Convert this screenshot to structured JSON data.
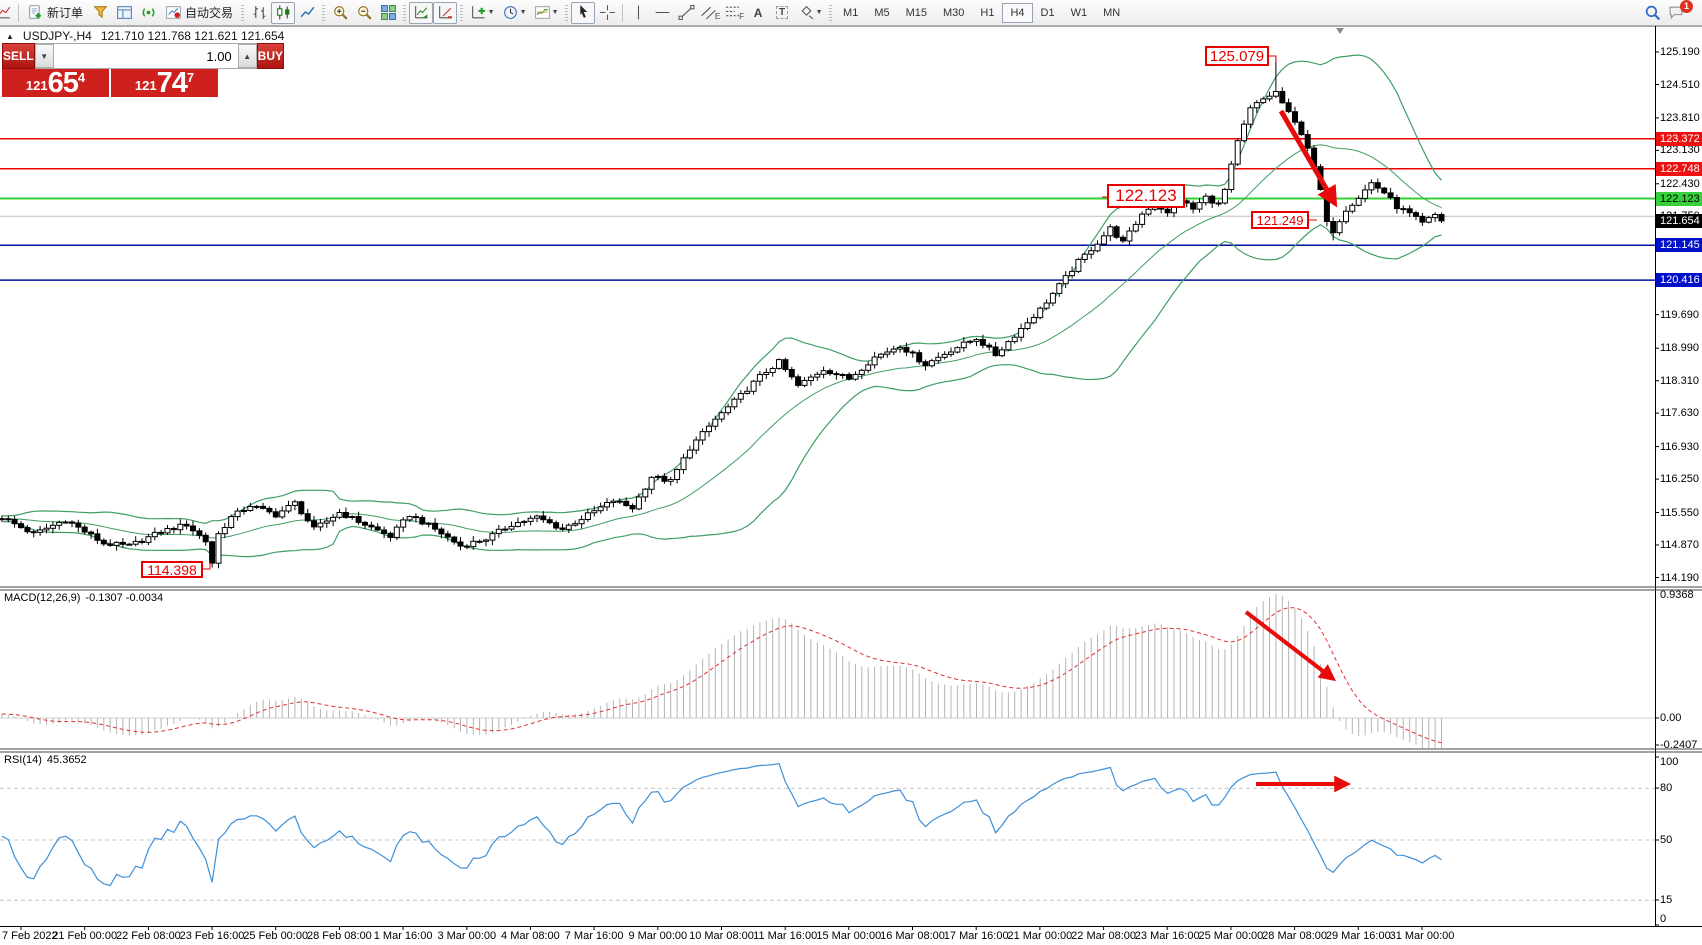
{
  "toolbar": {
    "new_order_label": "新订单",
    "auto_trading_label": "自动交易",
    "timeframes": [
      "M1",
      "M5",
      "M15",
      "M30",
      "H1",
      "H4",
      "D1",
      "W1",
      "MN"
    ],
    "active_timeframe": "H4",
    "notification_count": "1"
  },
  "icons": {
    "volume_down": "▼",
    "volume_up": "▲",
    "title_marker": "▲",
    "dropdown_caret": "▼",
    "text_tool": "A",
    "text_label_tool": "T",
    "channel_subscript": "E",
    "fibonacci_subscript": "F"
  },
  "chart": {
    "title_symbol": "USDJPY-,H4",
    "title_ohlc": "121.710 121.768 121.621 121.654"
  },
  "trade_panel": {
    "sell_label": "SELL",
    "buy_label": "BUY",
    "volume": "1.00",
    "sell_small": "121",
    "sell_big": "65",
    "sell_sup": "4",
    "buy_small": "121",
    "buy_big": "74",
    "buy_sup": "7"
  },
  "annotations": {
    "peak": "125.079",
    "level_mid": "122.123",
    "low_recent": "121.249",
    "low_feb": "114.398"
  },
  "macd_panel": {
    "label": "MACD(12,26,9)",
    "values": "-0.1307 -0.0034",
    "axis_top": "0.9368",
    "axis_zero": "0.00",
    "axis_bottom": "-0.2407"
  },
  "rsi_panel": {
    "label": "RSI(14)",
    "value": "45.3652",
    "axis": [
      "100",
      "80",
      "50",
      "15",
      "0"
    ]
  },
  "chart_data": {
    "type": "candlestick",
    "symbol": "USDJPY-",
    "timeframe": "H4",
    "ohlc_last": {
      "open": 121.71,
      "high": 121.768,
      "low": 121.621,
      "close": 121.654
    },
    "y_ticks": [
      "125.190",
      "124.510",
      "123.810",
      "123.130",
      "122.430",
      "121.750",
      "121.070",
      "120.390",
      "119.690",
      "118.990",
      "118.310",
      "117.630",
      "116.930",
      "116.250",
      "115.550",
      "114.870",
      "114.190"
    ],
    "x_labels": [
      "7 Feb 2022",
      "21 Feb 00:00",
      "22 Feb 08:00",
      "23 Feb 16:00",
      "25 Feb 00:00",
      "28 Feb 08:00",
      "1 Mar 16:00",
      "3 Mar 00:00",
      "4 Mar 08:00",
      "7 Mar 16:00",
      "9 Mar 00:00",
      "10 Mar 08:00",
      "11 Mar 16:00",
      "15 Mar 00:00",
      "16 Mar 08:00",
      "17 Mar 16:00",
      "21 Mar 00:00",
      "22 Mar 08:00",
      "23 Mar 16:00",
      "25 Mar 00:00",
      "28 Mar 08:00",
      "29 Mar 16:00",
      "31 Mar 00:00"
    ],
    "levels": [
      {
        "price": 123.372,
        "color": "#f00000",
        "label_bg": "#ee1111",
        "label_fg": "#ffffff"
      },
      {
        "price": 122.748,
        "color": "#f00000",
        "label_bg": "#ee1111",
        "label_fg": "#ffffff"
      },
      {
        "price": 122.123,
        "color": "#33d133",
        "label_bg": "#35d03a",
        "label_fg": "#000000"
      },
      {
        "price": 121.145,
        "color": "#000f9e",
        "label_bg": "#000fc8",
        "label_fg": "#ffffff"
      },
      {
        "price": 120.416,
        "color": "#000f9e",
        "label_bg": "#000fc8",
        "label_fg": "#ffffff"
      }
    ],
    "current_price": {
      "value": 121.654,
      "label_bg": "#000000",
      "label_fg": "#ffffff"
    },
    "bid_line_price": 121.75,
    "price_keypoints": [
      [
        -34,
        115.3
      ],
      [
        0,
        115.45
      ],
      [
        5,
        115.1
      ],
      [
        10,
        115.4
      ],
      [
        16,
        114.9
      ],
      [
        20,
        114.85
      ],
      [
        25,
        115.15
      ],
      [
        29,
        115.3
      ],
      [
        32,
        114.95
      ],
      [
        33,
        114.5
      ],
      [
        34,
        115.1
      ],
      [
        36,
        115.45
      ],
      [
        39,
        115.7
      ],
      [
        43,
        115.5
      ],
      [
        46,
        115.75
      ],
      [
        49,
        115.2
      ],
      [
        53,
        115.55
      ],
      [
        57,
        115.3
      ],
      [
        61,
        115.05
      ],
      [
        64,
        115.5
      ],
      [
        68,
        115.2
      ],
      [
        72,
        114.85
      ],
      [
        76,
        115.0
      ],
      [
        80,
        115.3
      ],
      [
        84,
        115.45
      ],
      [
        88,
        115.2
      ],
      [
        92,
        115.5
      ],
      [
        96,
        115.8
      ],
      [
        99,
        115.65
      ],
      [
        102,
        116.3
      ],
      [
        105,
        116.2
      ],
      [
        108,
        116.9
      ],
      [
        112,
        117.5
      ],
      [
        116,
        118.0
      ],
      [
        119,
        118.4
      ],
      [
        122,
        118.7
      ],
      [
        125,
        118.2
      ],
      [
        129,
        118.55
      ],
      [
        133,
        118.35
      ],
      [
        137,
        118.8
      ],
      [
        141,
        119.05
      ],
      [
        145,
        118.65
      ],
      [
        149,
        118.95
      ],
      [
        153,
        119.2
      ],
      [
        156,
        118.85
      ],
      [
        160,
        119.4
      ],
      [
        163,
        119.8
      ],
      [
        166,
        120.3
      ],
      [
        169,
        120.8
      ],
      [
        172,
        121.2
      ],
      [
        174,
        121.5
      ],
      [
        176,
        121.2
      ],
      [
        179,
        121.8
      ],
      [
        181,
        122.05
      ],
      [
        183,
        121.8
      ],
      [
        185,
        122.1
      ],
      [
        187,
        121.9
      ],
      [
        189,
        122.15
      ],
      [
        191,
        122.0
      ],
      [
        192,
        122.3
      ],
      [
        194,
        123.3
      ],
      [
        196,
        124.0
      ],
      [
        198,
        124.2
      ],
      [
        200,
        124.35
      ],
      [
        202,
        123.9
      ],
      [
        204,
        123.5
      ],
      [
        205,
        123.2
      ],
      [
        207,
        122.3
      ],
      [
        208,
        121.6
      ],
      [
        209,
        121.45
      ],
      [
        211,
        121.9
      ],
      [
        213,
        122.15
      ],
      [
        215,
        122.45
      ],
      [
        217,
        122.25
      ],
      [
        219,
        121.95
      ],
      [
        221,
        121.8
      ],
      [
        223,
        121.6
      ],
      [
        225,
        121.78
      ],
      [
        226,
        121.654
      ]
    ],
    "special_bars": {
      "33": {
        "low": 114.398
      },
      "200": {
        "high": 125.079
      },
      "209": {
        "low": 121.249
      }
    },
    "annotations": [
      {
        "text": "125.079",
        "type": "price-callout"
      },
      {
        "text": "122.123",
        "type": "price-callout"
      },
      {
        "text": "121.249",
        "type": "price-callout"
      },
      {
        "text": "114.398",
        "type": "price-callout"
      },
      {
        "type": "trend-arrow",
        "panel": "main",
        "direction": "down"
      },
      {
        "type": "trend-arrow",
        "panel": "macd",
        "direction": "down"
      },
      {
        "type": "trend-arrow",
        "panel": "rsi",
        "direction": "right"
      }
    ],
    "indicators": {
      "bollinger": {
        "period": 20,
        "deviation": 2,
        "color": "#3f9e63"
      },
      "macd": {
        "fast": 12,
        "slow": 26,
        "signal": 9,
        "last": -0.1307,
        "signal_last": -0.0034,
        "axis": [
          0.9368,
          0.0,
          -0.2407
        ]
      },
      "rsi": {
        "period": 14,
        "last": 45.3652,
        "levels": [
          80,
          50,
          15
        ]
      }
    }
  }
}
